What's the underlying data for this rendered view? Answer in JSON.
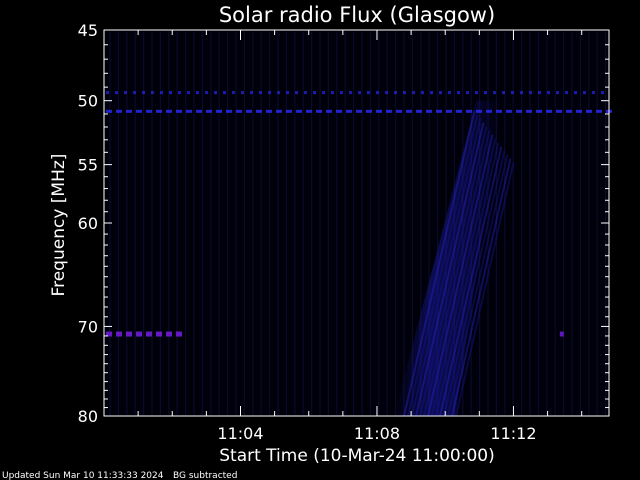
{
  "chart_data": {
    "type": "heatmap",
    "title": "Solar radio Flux (Glasgow)",
    "ylabel": "Frequency [MHz]",
    "xlabel": "Start Time (10-Mar-24 11:00:00)",
    "x_ticks": [
      "11:04",
      "11:08",
      "11:12"
    ],
    "x_tick_minutes": [
      4,
      8,
      12
    ],
    "x_range_minutes": [
      0,
      14.8
    ],
    "y_ticks": [
      "45",
      "50",
      "55",
      "60",
      "70",
      "80"
    ],
    "y_tick_values": [
      45,
      50,
      55,
      60,
      70,
      80
    ],
    "y_range": [
      45,
      80
    ],
    "y_scale": "log",
    "y_inverted": true,
    "background_removed": true,
    "features": [
      {
        "name": "interference-line",
        "freq_mhz": 49.4,
        "t_start_min": 0,
        "t_end_min": 14.8,
        "intensity": 0.35
      },
      {
        "name": "interference-line",
        "freq_mhz": 50.8,
        "t_start_min": 0,
        "t_end_min": 14.8,
        "intensity": 0.6
      },
      {
        "name": "interference-line",
        "freq_mhz": 70.8,
        "t_start_min": 0,
        "t_end_min": 2.2,
        "intensity": 0.9
      },
      {
        "name": "interference-spot",
        "freq_mhz": 70.8,
        "t_start_min": 13.3,
        "t_end_min": 13.4,
        "intensity": 0.8
      },
      {
        "name": "burst",
        "freq_mhz_range": [
          50,
          80
        ],
        "t_start_min": 8.5,
        "t_end_min": 11.5,
        "intensity": 0.5
      }
    ],
    "colors": {
      "background": "#000000",
      "frame": "#ffffff",
      "signal": "#2a2aff",
      "strong": "#6a1ad0"
    }
  },
  "footer": {
    "updated": "Updated Sun Mar 10 11:33:33 2024",
    "note": "BG subtracted"
  }
}
